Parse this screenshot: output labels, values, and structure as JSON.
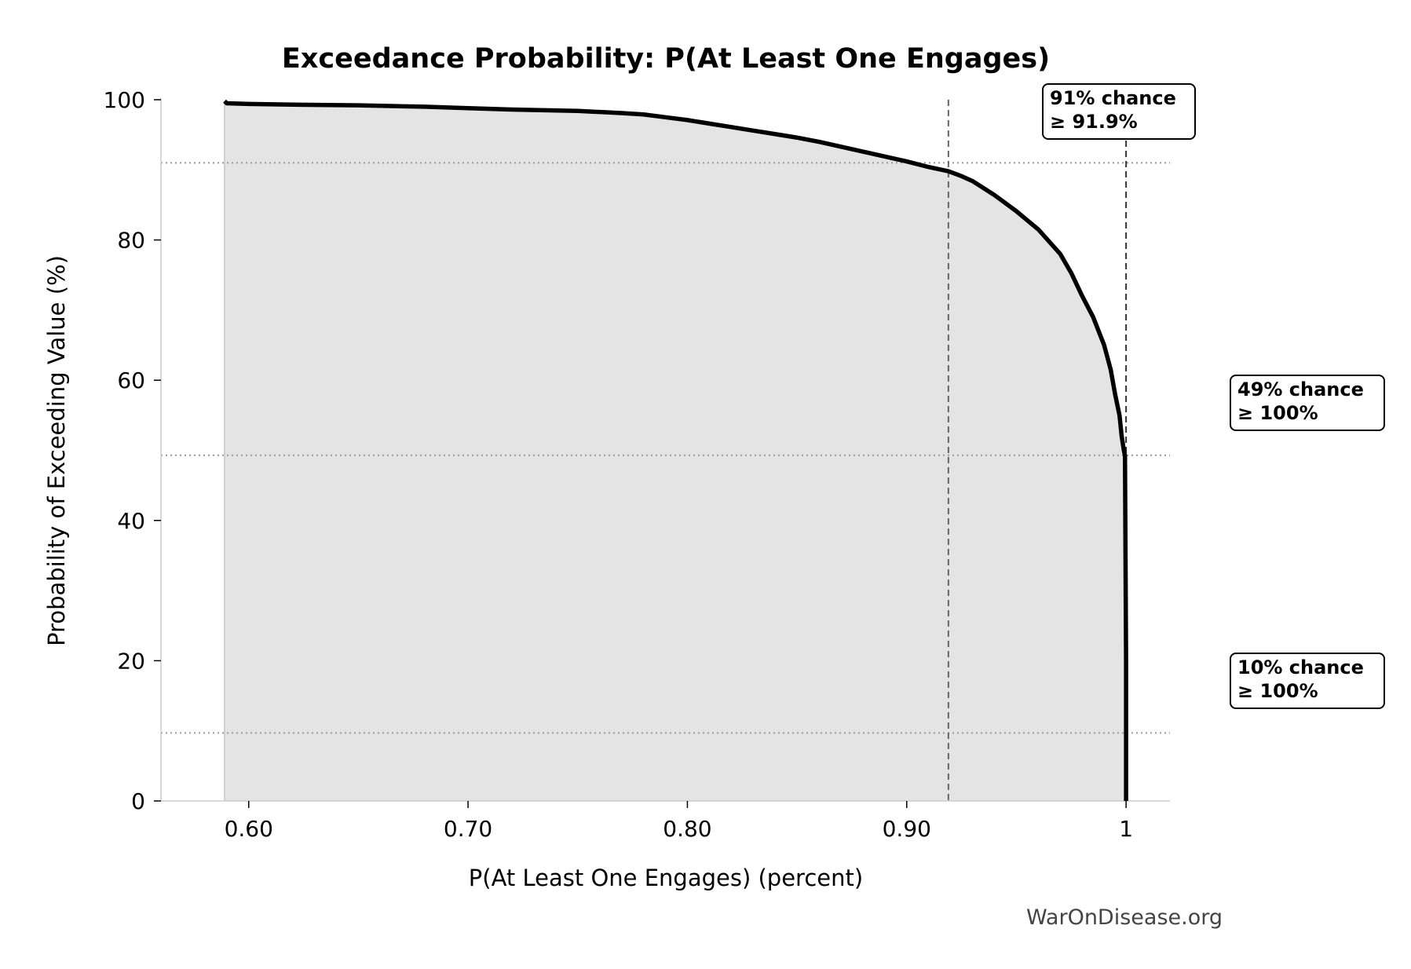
{
  "chart_data": {
    "type": "line",
    "title": "Exceedance Probability: P(At Least One Engages)",
    "xlabel": "P(At Least One Engages) (percent)",
    "ylabel": "Probability of Exceeding Value (%)",
    "xlim": [
      0.56,
      1.02
    ],
    "ylim": [
      0,
      100
    ],
    "xticks": [
      {
        "value": 0.6,
        "label": "0.60"
      },
      {
        "value": 0.7,
        "label": "0.70"
      },
      {
        "value": 0.8,
        "label": "0.80"
      },
      {
        "value": 0.9,
        "label": "0.90"
      },
      {
        "value": 1.0,
        "label": "1"
      }
    ],
    "yticks": [
      {
        "value": 0,
        "label": "0"
      },
      {
        "value": 20,
        "label": "20"
      },
      {
        "value": 40,
        "label": "40"
      },
      {
        "value": 60,
        "label": "60"
      },
      {
        "value": 80,
        "label": "80"
      },
      {
        "value": 100,
        "label": "100"
      }
    ],
    "series": [
      {
        "x": [
          0.589,
          0.59,
          0.6,
          0.62,
          0.65,
          0.68,
          0.7,
          0.72,
          0.75,
          0.77,
          0.78,
          0.79,
          0.8,
          0.81,
          0.82,
          0.83,
          0.84,
          0.85,
          0.86,
          0.87,
          0.88,
          0.89,
          0.9,
          0.91,
          0.919,
          0.925,
          0.93,
          0.94,
          0.95,
          0.96,
          0.97,
          0.975,
          0.98,
          0.985,
          0.99,
          0.993,
          0.995,
          0.997,
          0.998,
          0.999,
          0.9995,
          1.0,
          1.0
        ],
        "y": [
          99.8,
          99.5,
          99.4,
          99.3,
          99.2,
          99.0,
          98.8,
          98.6,
          98.4,
          98.1,
          97.9,
          97.5,
          97.1,
          96.6,
          96.1,
          95.6,
          95.1,
          94.6,
          94.0,
          93.3,
          92.6,
          91.9,
          91.2,
          90.4,
          89.8,
          89.1,
          88.4,
          86.4,
          84.1,
          81.5,
          78.0,
          75.3,
          72.0,
          69.0,
          65.0,
          61.5,
          58.0,
          55.0,
          52.0,
          50.0,
          49.2,
          20.0,
          0.0
        ],
        "color": "#000000"
      }
    ],
    "percentile_lines": [
      {
        "value": 0.919,
        "color": "#666666"
      },
      {
        "value": 1.0,
        "color": "#333333"
      }
    ],
    "threshold_lines": [
      {
        "y": 91
      },
      {
        "y": 49.3
      },
      {
        "y": 9.7
      }
    ],
    "annotations": [
      {
        "line1": "91% chance",
        "line2": "≥ 91.9%"
      },
      {
        "line1": "49% chance",
        "line2": "≥ 100%"
      },
      {
        "line1": "10% chance",
        "line2": "≥ 100%"
      }
    ],
    "fill_color": "#e4e4e4",
    "grid": false,
    "legend": "none"
  },
  "watermark": "WarOnDisease.org"
}
